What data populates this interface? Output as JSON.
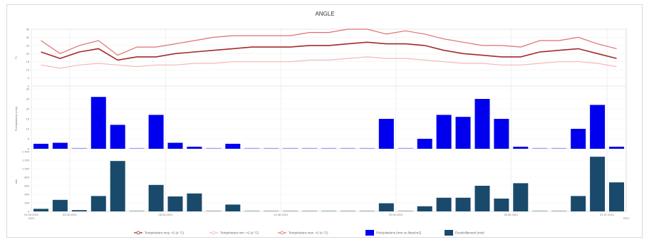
{
  "chart_data": {
    "title": "ANGLE",
    "type": "line+bar",
    "n_days": 31,
    "x_ticks": [
      {
        "index": 0,
        "label": "01.06.2021"
      },
      {
        "index": 2,
        "label": "03.06.2021"
      },
      {
        "index": 7,
        "label": "08.06.2021"
      },
      {
        "index": 13,
        "label": "14.06.2021"
      },
      {
        "index": 19,
        "label": "20.06.2021"
      },
      {
        "index": 25,
        "label": "26.06.2021"
      },
      {
        "index": 30,
        "label": "01.07.2021"
      }
    ],
    "x_tick_sublabels": {
      "first": "2021",
      "last": "2021"
    },
    "temperature_panel": {
      "ylabel": "°C",
      "ylim": [
        0,
        35
      ],
      "yticks": [
        "35",
        "30",
        "25",
        "20",
        "15",
        "10",
        "5",
        "0"
      ],
      "series": [
        {
          "name": "Température moy. ×2 (s.°C)",
          "color": "#a52a2a",
          "values": [
            21,
            17,
            21,
            23,
            16,
            18,
            18,
            20,
            21,
            22,
            23,
            24,
            24,
            24,
            25,
            25,
            26,
            27,
            26,
            26,
            25,
            22,
            20,
            19,
            18,
            18,
            21,
            22,
            23,
            20,
            17
          ]
        },
        {
          "name": "Température min. ×2 (s.°C)",
          "color": "#f4b8b8",
          "values": [
            13,
            11,
            13,
            14,
            13,
            12,
            13,
            13,
            14,
            14,
            15,
            15,
            15,
            15,
            16,
            16,
            17,
            18,
            17,
            17,
            16,
            15,
            14,
            14,
            13,
            13,
            14,
            15,
            15,
            14,
            12
          ]
        },
        {
          "name": "Température max. ×2 (s.°C)",
          "color": "#e07070",
          "values": [
            28,
            20,
            25,
            28,
            19,
            24,
            24,
            26,
            28,
            30,
            31,
            31,
            31,
            31,
            33,
            33,
            35,
            35,
            32,
            34,
            32,
            29,
            27,
            25,
            25,
            24,
            28,
            28,
            30,
            26,
            23
          ]
        }
      ]
    },
    "precip_panel": {
      "ylabel": "Précipitations (mm)",
      "ylim": [
        0,
        30
      ],
      "yticks": [
        "30",
        "25",
        "20",
        "15",
        "10",
        "5",
        "0"
      ],
      "series": [
        {
          "name": "Précipitations (mm ou litres/m2)",
          "color": "#0000ee",
          "values": [
            2.5,
            3,
            0,
            26,
            12,
            0,
            17,
            3,
            1,
            0,
            2.5,
            0,
            0,
            0,
            0,
            0,
            0,
            0,
            15,
            0,
            5,
            17,
            16,
            25,
            15,
            1,
            0,
            0,
            10,
            22,
            1
          ]
        }
      ]
    },
    "sunshine_panel": {
      "ylabel": "min",
      "ylim": [
        0,
        1400
      ],
      "yticks": [
        "1 400",
        "1 200",
        "1 000",
        "800",
        "600",
        "400",
        "200",
        "0"
      ],
      "series": [
        {
          "name": "Ensoleillement (min)",
          "color": "#1a4a6b",
          "values": [
            60,
            270,
            30,
            360,
            1180,
            0,
            620,
            350,
            420,
            0,
            160,
            0,
            0,
            0,
            0,
            0,
            0,
            0,
            190,
            0,
            120,
            320,
            320,
            600,
            300,
            660,
            0,
            0,
            360,
            1280,
            680
          ]
        }
      ]
    }
  }
}
